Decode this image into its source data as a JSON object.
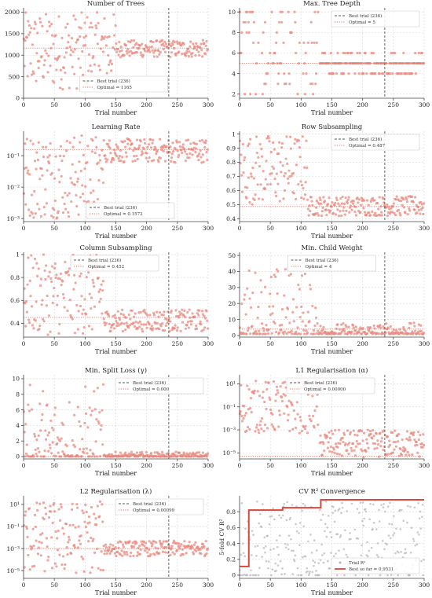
{
  "figure": {
    "xlabel": "Trial number"
  },
  "colors": {
    "points": "#e8897f",
    "best_line": "#555555",
    "optimal_line": "#e06f60",
    "gray_points": "#b5b5b5",
    "best_so_far": "#d9483b"
  },
  "chart_data": [
    {
      "id": "n_trees",
      "type": "scatter",
      "title": "Number of Trees",
      "xlabel": "Trial number",
      "xlim": [
        0,
        300
      ],
      "xticks": [
        0,
        50,
        100,
        150,
        200,
        250,
        300
      ],
      "ylim": [
        0,
        2100
      ],
      "yticks": [
        0,
        500,
        1000,
        1500,
        2000
      ],
      "ylog": false,
      "best_trial": 236,
      "optimal": 1165,
      "legend": [
        "Best trial (236)",
        "Optimal = 1165"
      ],
      "legend_pos": "bottom-center",
      "phases": [
        {
          "x0": 0,
          "x1": 150,
          "ymin": 200,
          "ymax": 2000
        },
        {
          "x0": 150,
          "x1": 300,
          "ymin": 950,
          "ymax": 1350
        }
      ]
    },
    {
      "id": "max_depth",
      "type": "scatter",
      "title": "Max. Tree Depth",
      "xlabel": "Trial number",
      "xlim": [
        0,
        300
      ],
      "xticks": [
        0,
        50,
        100,
        150,
        200,
        250,
        300
      ],
      "ylim": [
        1.6,
        10.4
      ],
      "yticks": [
        2,
        4,
        6,
        8,
        10
      ],
      "ylog": false,
      "best_trial": 236,
      "optimal": 5,
      "discrete": [
        2,
        3,
        4,
        5,
        6,
        7,
        8,
        9,
        10
      ],
      "legend": [
        "Best trial (236)",
        "Optimal = 5"
      ],
      "legend_pos": "top-right",
      "phases": [
        {
          "x0": 0,
          "x1": 130,
          "ymin": 2,
          "ymax": 10
        },
        {
          "x0": 130,
          "x1": 300,
          "ymin": 4,
          "ymax": 6
        }
      ]
    },
    {
      "id": "learning_rate",
      "type": "scatter",
      "title": "Learning Rate",
      "xlabel": "Trial number",
      "xlim": [
        0,
        300
      ],
      "xticks": [
        0,
        50,
        100,
        150,
        200,
        250,
        300
      ],
      "ylim": [
        0.0008,
        0.6
      ],
      "yticks": [
        0.001,
        0.01,
        0.1
      ],
      "ytick_labels": [
        "10⁻³",
        "10⁻²",
        "10⁻¹"
      ],
      "ylog": true,
      "best_trial": 236,
      "optimal": 0.1572,
      "legend": [
        "Best trial (236)",
        "Optimal = 0.1572"
      ],
      "legend_pos": "bottom-left",
      "phases": [
        {
          "x0": 0,
          "x1": 130,
          "ymin": 0.001,
          "ymax": 0.5
        },
        {
          "x0": 130,
          "x1": 300,
          "ymin": 0.06,
          "ymax": 0.35
        }
      ]
    },
    {
      "id": "row_subsampling",
      "type": "scatter",
      "title": "Row Subsampling",
      "xlabel": "Trial number",
      "xlim": [
        0,
        300
      ],
      "xticks": [
        0,
        50,
        100,
        150,
        200,
        250,
        300
      ],
      "ylim": [
        0.38,
        1.02
      ],
      "yticks": [
        0.4,
        0.5,
        0.6,
        0.7,
        0.8,
        0.9,
        1.0
      ],
      "ylog": false,
      "best_trial": 236,
      "optimal": 0.487,
      "legend": [
        "Best trial (236)",
        "Optimal = 0.487"
      ],
      "legend_pos": "top-right",
      "phases": [
        {
          "x0": 0,
          "x1": 110,
          "ymin": 0.5,
          "ymax": 1.0
        },
        {
          "x0": 110,
          "x1": 300,
          "ymin": 0.42,
          "ymax": 0.56
        }
      ]
    },
    {
      "id": "col_subsampling",
      "type": "scatter",
      "title": "Column Subsampling",
      "xlabel": "Trial number",
      "xlim": [
        0,
        300
      ],
      "xticks": [
        0,
        50,
        100,
        150,
        200,
        250,
        300
      ],
      "ylim": [
        0.28,
        1.02
      ],
      "yticks": [
        0.4,
        0.6,
        0.8,
        1.0
      ],
      "ylog": false,
      "best_trial": 236,
      "optimal": 0.452,
      "legend": [
        "Best trial (236)",
        "Optimal = 0.452"
      ],
      "legend_pos": "top-left",
      "phases": [
        {
          "x0": 0,
          "x1": 130,
          "ymin": 0.3,
          "ymax": 1.0
        },
        {
          "x0": 130,
          "x1": 300,
          "ymin": 0.33,
          "ymax": 0.52
        }
      ]
    },
    {
      "id": "min_child_weight",
      "type": "scatter",
      "title": "Min. Child Weight",
      "xlabel": "Trial number",
      "xlim": [
        0,
        300
      ],
      "xticks": [
        0,
        50,
        100,
        150,
        200,
        250,
        300
      ],
      "ylim": [
        -1,
        52
      ],
      "yticks": [
        0,
        10,
        20,
        30,
        40,
        50
      ],
      "ylog": false,
      "best_trial": 236,
      "optimal": 4,
      "legend": [
        "Best trial (236)",
        "Optimal = 4"
      ],
      "legend_pos": "top-center",
      "phases": [
        {
          "x0": 0,
          "x1": 130,
          "ymin": 1,
          "ymax": 45
        },
        {
          "x0": 130,
          "x1": 300,
          "ymin": 1,
          "ymax": 8
        }
      ]
    },
    {
      "id": "min_split_loss",
      "type": "scatter",
      "title": "Min. Split Loss (γ)",
      "xlabel": "Trial number",
      "xlim": [
        0,
        300
      ],
      "xticks": [
        0,
        50,
        100,
        150,
        200,
        250,
        300
      ],
      "ylim": [
        -0.3,
        10.5
      ],
      "yticks": [
        0,
        2,
        4,
        6,
        8,
        10
      ],
      "ylog": false,
      "best_trial": 236,
      "optimal": 0.0,
      "legend": [
        "Best trial (236)",
        "Optimal = 0.000"
      ],
      "legend_pos": "top-right",
      "phases": [
        {
          "x0": 0,
          "x1": 130,
          "ymin": 0,
          "ymax": 9.5
        },
        {
          "x0": 130,
          "x1": 300,
          "ymin": 0,
          "ymax": 0.6
        }
      ]
    },
    {
      "id": "l1_reg",
      "type": "scatter",
      "title": "L1 Regularisation (α)",
      "xlabel": "Trial number",
      "xlim": [
        0,
        300
      ],
      "xticks": [
        0,
        50,
        100,
        150,
        200,
        250,
        300
      ],
      "ylim": [
        3e-06,
        60
      ],
      "yticks": [
        1e-05,
        0.001,
        0.1,
        10
      ],
      "ytick_labels": [
        "10⁻⁵",
        "10⁻³",
        "10⁻¹",
        "10¹"
      ],
      "ylog": true,
      "best_trial": 236,
      "optimal": 5e-06,
      "legend": [
        "Best trial (236)",
        "Optimal = 0.00000"
      ],
      "legend_pos": "top-left",
      "phases": [
        {
          "x0": 0,
          "x1": 130,
          "ymin": 0.0005,
          "ymax": 20
        },
        {
          "x0": 130,
          "x1": 300,
          "ymin": 4e-06,
          "ymax": 0.001
        }
      ]
    },
    {
      "id": "l2_reg",
      "type": "scatter",
      "title": "L2 Regularisation (λ)",
      "xlabel": "Trial number",
      "xlim": [
        0,
        300
      ],
      "xticks": [
        0,
        50,
        100,
        150,
        200,
        250,
        300
      ],
      "ylim": [
        2e-06,
        60
      ],
      "yticks": [
        1e-05,
        0.001,
        0.1,
        10
      ],
      "ytick_labels": [
        "10⁻⁵",
        "10⁻³",
        "10⁻¹",
        "10¹"
      ],
      "ylog": true,
      "best_trial": 236,
      "optimal": 0.00099,
      "legend": [
        "Best trial (236)",
        "Optimal = 0.00099"
      ],
      "legend_pos": "top-right",
      "phases": [
        {
          "x0": 0,
          "x1": 130,
          "ymin": 5e-06,
          "ymax": 20
        },
        {
          "x0": 130,
          "x1": 300,
          "ymin": 0.0002,
          "ymax": 0.005
        }
      ]
    },
    {
      "id": "cv_convergence",
      "type": "line",
      "title": "CV R² Convergence",
      "xlabel": "Trial number",
      "ylabel": "5-fold CV R²",
      "xlim": [
        0,
        300
      ],
      "xticks": [
        0,
        50,
        100,
        150,
        200,
        250,
        300
      ],
      "ylim": [
        -0.04,
        1.0
      ],
      "yticks": [
        0.0,
        0.2,
        0.4,
        0.6,
        0.8
      ],
      "ylog": false,
      "legend": [
        "Trial R²",
        "Best so far = 0.9531"
      ],
      "legend_pos": "bottom-right",
      "best_so_far_steps": [
        [
          0,
          0.11
        ],
        [
          15,
          0.11
        ],
        [
          15,
          0.82
        ],
        [
          70,
          0.82
        ],
        [
          70,
          0.85
        ],
        [
          132,
          0.85
        ],
        [
          132,
          0.95
        ],
        [
          300,
          0.95
        ]
      ],
      "trial_scatter": {
        "ymin": 0.0,
        "ymax": 0.95
      }
    }
  ]
}
